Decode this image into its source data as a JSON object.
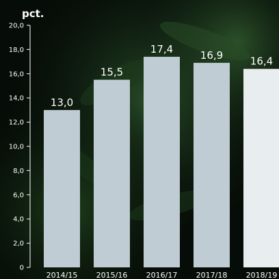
{
  "colors": {
    "bar": "#c0ccd3",
    "bar_highlight": "#e8eef0",
    "axis": "#d9dee0",
    "text": "#ffffff"
  },
  "chart_data": {
    "type": "bar",
    "title": "",
    "xlabel": "",
    "ylabel": "pct.",
    "ylim": [
      0,
      20
    ],
    "y_ticks": [
      "0",
      "2,0",
      "4,0",
      "6,0",
      "8,0",
      "10,0",
      "12,0",
      "14,0",
      "16,0",
      "18,0",
      "20,0"
    ],
    "y_tick_values": [
      0,
      2,
      4,
      6,
      8,
      10,
      12,
      14,
      16,
      18,
      20
    ],
    "categories": [
      "2014/15",
      "2015/16",
      "2016/17",
      "2017/18",
      "2018/19"
    ],
    "values": [
      13.0,
      15.5,
      17.4,
      16.9,
      16.4
    ],
    "value_labels": [
      "13,0",
      "15,5",
      "17,4",
      "16,9",
      "16,4"
    ],
    "highlight_index": 4,
    "grid": false,
    "legend": "none"
  }
}
